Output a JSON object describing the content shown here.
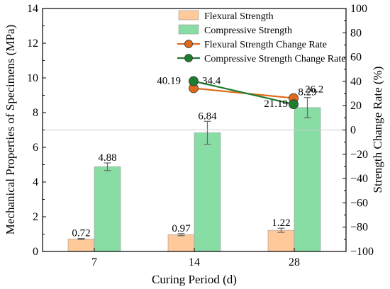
{
  "chart_data": {
    "type": "bar",
    "categories": [
      "7",
      "14",
      "28"
    ],
    "xlabel": "Curing Period (d)",
    "ylabel": "Mechanical Properties of Specimens (MPa)",
    "y2label": "Strength Change Rate (%)",
    "ylim": [
      0,
      14
    ],
    "y2lim": [
      -100,
      100
    ],
    "yticks": [
      "0",
      "2",
      "4",
      "6",
      "8",
      "10",
      "12",
      "14"
    ],
    "y2ticks": [
      "−100",
      "−80",
      "−60",
      "−40",
      "−20",
      "0",
      "20",
      "40",
      "60",
      "80",
      "100"
    ],
    "grid": false,
    "legend_position": "top-center",
    "reference_line_y2": 0,
    "series": [
      {
        "name": "Flexural Strength",
        "kind": "bar",
        "axis": "left",
        "color": "#FFC999",
        "values": [
          0.72,
          0.97,
          1.22
        ],
        "errors": [
          0.03,
          0.06,
          0.12
        ],
        "labels": [
          "0.72",
          "0.97",
          "1.22"
        ]
      },
      {
        "name": "Compressive Strength",
        "kind": "bar",
        "axis": "left",
        "color": "#88DDA5",
        "values": [
          4.88,
          6.84,
          8.29
        ],
        "errors": [
          0.22,
          0.66,
          0.58
        ],
        "labels": [
          "4.88",
          "6.84",
          "8.29"
        ]
      },
      {
        "name": "Flexural Strength Change Rate",
        "kind": "line",
        "axis": "right",
        "color": "#E06A1B",
        "points": [
          {
            "category": "14",
            "value": 34.4,
            "label": "34.4"
          },
          {
            "category": "28",
            "value": 26.2,
            "label": "26.2"
          }
        ]
      },
      {
        "name": "Compressive Strength Change Rate",
        "kind": "line",
        "axis": "right",
        "color": "#1E7D2F",
        "points": [
          {
            "category": "14",
            "value": 40.19,
            "label": "40.19"
          },
          {
            "category": "28",
            "value": 21.19,
            "label": "21.19"
          }
        ]
      }
    ]
  }
}
